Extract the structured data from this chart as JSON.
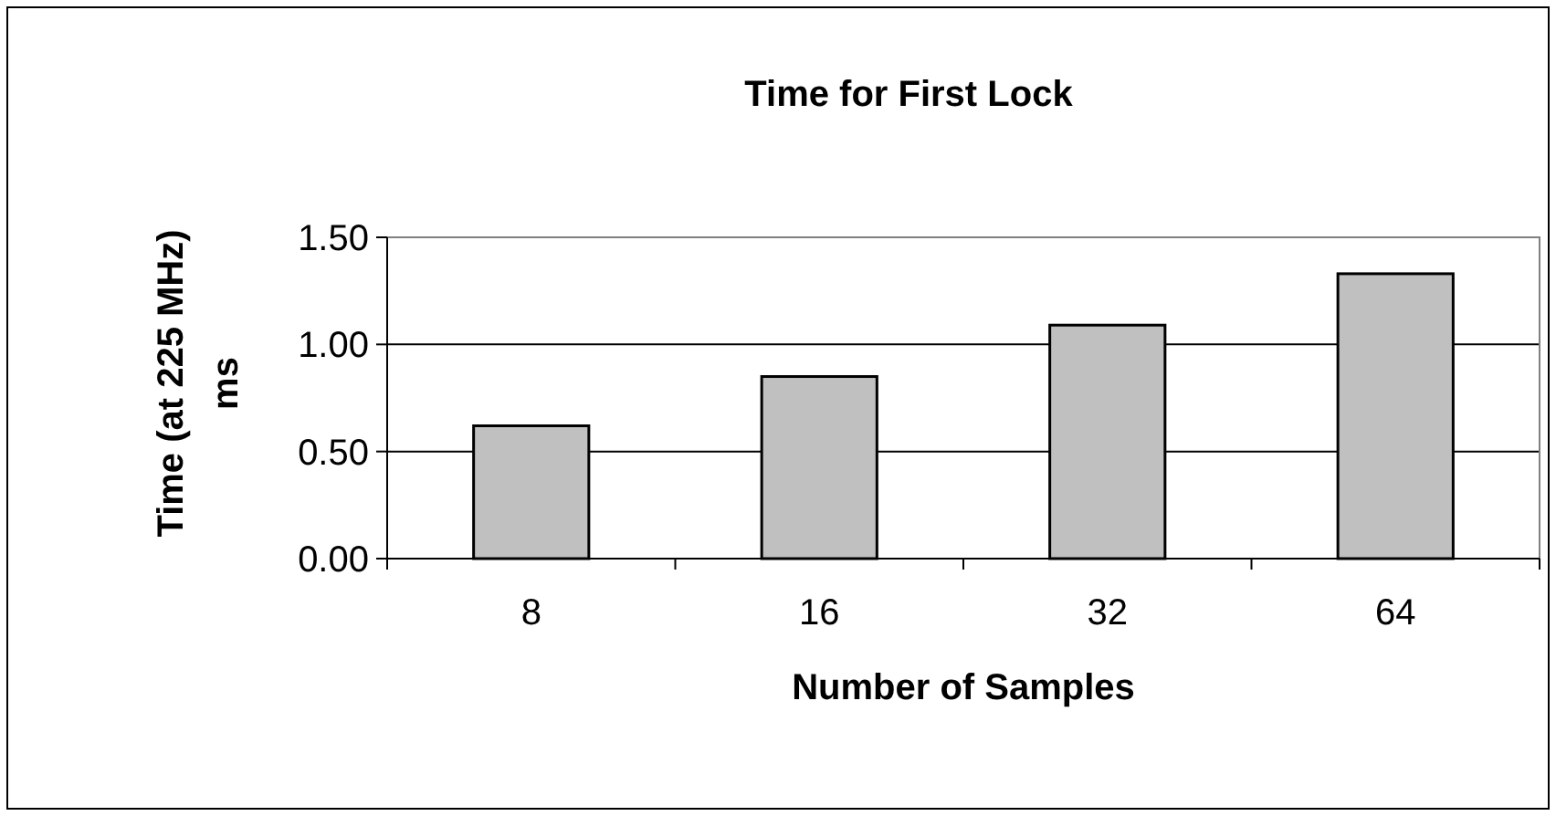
{
  "chart_data": {
    "type": "bar",
    "title": "Time for First Lock",
    "xlabel": "Number of Samples",
    "ylabel": "Time (at 225 MHz)\nms",
    "categories": [
      "8",
      "16",
      "32",
      "64"
    ],
    "values": [
      0.62,
      0.85,
      1.09,
      1.33
    ],
    "color": "#c0c0c0",
    "ylim": [
      0,
      1.5
    ],
    "yticks": [
      {
        "value": 0,
        "label": "0.00"
      },
      {
        "value": 0.5,
        "label": "0.50"
      },
      {
        "value": 1,
        "label": "1.00"
      },
      {
        "value": 1.5,
        "label": "1.50"
      }
    ],
    "grid": "y"
  }
}
